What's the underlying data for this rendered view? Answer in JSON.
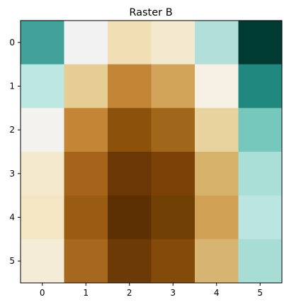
{
  "chart_data": {
    "type": "heatmap",
    "title": "Raster B",
    "x_ticks": [
      "0",
      "1",
      "2",
      "3",
      "4",
      "5"
    ],
    "y_ticks": [
      "0",
      "1",
      "2",
      "3",
      "4",
      "5"
    ],
    "colormap": "BrBG",
    "grid": false,
    "cells": [
      [
        "#42a29a",
        "#f2f2f2",
        "#f0dfb4",
        "#f3e9cf",
        "#b3dfda",
        "#003b33"
      ],
      [
        "#bde7e3",
        "#e5cd93",
        "#c38636",
        "#d1a45a",
        "#f6efe4",
        "#21887f"
      ],
      [
        "#f3f2ee",
        "#c38636",
        "#8c510a",
        "#a0661a",
        "#e8d39e",
        "#76c8bc"
      ],
      [
        "#f4e8cd",
        "#a5641a",
        "#6b3704",
        "#7b4106",
        "#d6b16a",
        "#aadfd8"
      ],
      [
        "#f4e6c2",
        "#9a5c10",
        "#5c3002",
        "#704005",
        "#d1a155",
        "#bbe5e1"
      ],
      [
        "#f5ecd8",
        "#a6671e",
        "#6b3a06",
        "#844a0a",
        "#d8b472",
        "#a7ddd5"
      ]
    ]
  }
}
